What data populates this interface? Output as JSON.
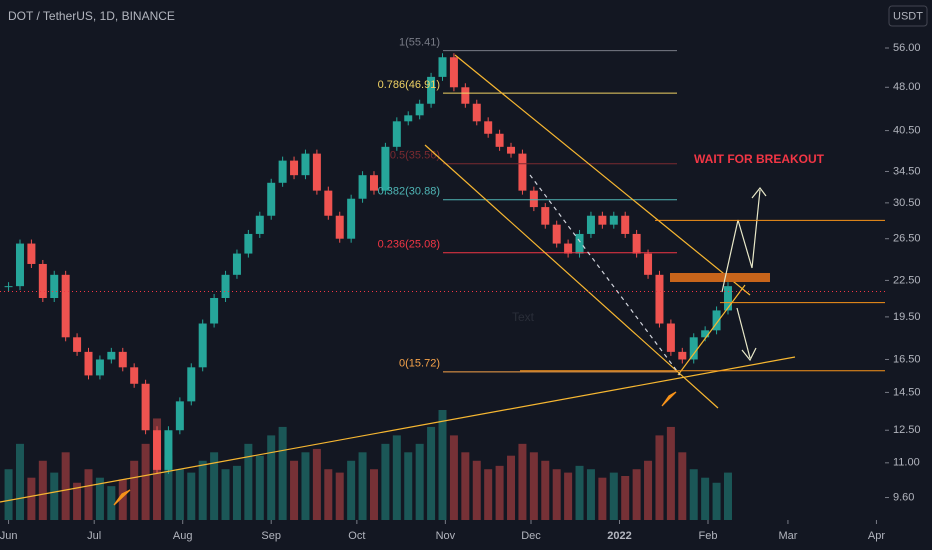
{
  "chart_data": {
    "type": "candlestick",
    "title": "DOT / TetherUS, 1D, BINANCE",
    "currency": "USDT",
    "log_scale": true,
    "x": [
      0,
      4,
      8,
      12,
      16,
      20,
      24,
      28,
      32,
      36,
      40,
      44,
      48,
      52,
      56,
      60,
      64,
      68,
      72,
      76,
      80,
      84,
      88,
      92,
      96,
      100,
      104,
      108,
      112,
      116,
      120,
      124,
      128,
      132,
      136,
      140,
      144,
      148,
      152,
      156,
      160,
      164,
      168,
      172,
      176,
      180,
      184,
      188,
      192,
      196,
      200,
      204,
      208,
      212,
      216,
      220,
      224,
      228,
      232,
      236,
      240,
      244,
      248,
      252
    ],
    "close": [
      22,
      26,
      24,
      21,
      23,
      18,
      17,
      15.5,
      16.5,
      17,
      16,
      15,
      12.5,
      10.7,
      12.5,
      14,
      16,
      19,
      21,
      23,
      25,
      27,
      29,
      33,
      36,
      34,
      37,
      32,
      29,
      26.5,
      31,
      34,
      32,
      38,
      42,
      43,
      45,
      50,
      54,
      48,
      45,
      42,
      40,
      38,
      37,
      32,
      30,
      28,
      26,
      25,
      27,
      29,
      28,
      29,
      27,
      25,
      23,
      19,
      17,
      16.5,
      18,
      18.5,
      20,
      22
    ],
    "volume": [
      30,
      45,
      25,
      35,
      28,
      40,
      22,
      30,
      25,
      20,
      24,
      35,
      45,
      60,
      38,
      30,
      28,
      35,
      40,
      30,
      32,
      45,
      38,
      50,
      55,
      35,
      40,
      42,
      30,
      28,
      35,
      40,
      30,
      45,
      50,
      40,
      45,
      55,
      65,
      50,
      40,
      35,
      30,
      32,
      38,
      45,
      40,
      35,
      30,
      28,
      32,
      30,
      25,
      28,
      26,
      30,
      35,
      50,
      55,
      40,
      30,
      25,
      22,
      28
    ],
    "up_color": "#26a69a",
    "down_color": "#ef5350",
    "xlim": [
      -3,
      307
    ],
    "xticks": [
      {
        "value": 0,
        "label": "Jun"
      },
      {
        "value": 30,
        "label": "Jul"
      },
      {
        "value": 61,
        "label": "Aug"
      },
      {
        "value": 92,
        "label": "Sep"
      },
      {
        "value": 122,
        "label": "Oct"
      },
      {
        "value": 153,
        "label": "Nov"
      },
      {
        "value": 183,
        "label": "Dec"
      },
      {
        "value": 214,
        "label": "2022"
      },
      {
        "value": 245,
        "label": "Feb"
      },
      {
        "value": 273,
        "label": "Mar"
      },
      {
        "value": 304,
        "label": "Apr"
      }
    ],
    "ylim": [
      8.79,
      67.6
    ],
    "yticks": [
      {
        "value": 9.6,
        "label": "9.60"
      },
      {
        "value": 11,
        "label": "11.00"
      },
      {
        "value": 12.5,
        "label": "12.50"
      },
      {
        "value": 14.5,
        "label": "14.50"
      },
      {
        "value": 16.5,
        "label": "16.50"
      },
      {
        "value": 19.5,
        "label": "19.50"
      },
      {
        "value": 22.5,
        "label": "22.50"
      },
      {
        "value": 26.5,
        "label": "26.50"
      },
      {
        "value": 30.5,
        "label": "30.50"
      },
      {
        "value": 34.5,
        "label": "34.50"
      },
      {
        "value": 40.5,
        "label": "40.50"
      },
      {
        "value": 48,
        "label": "48.00"
      },
      {
        "value": 56,
        "label": "56.00"
      }
    ],
    "fib_levels": [
      {
        "value": 55.41,
        "label": "1(55.41)",
        "color": "#787b86"
      },
      {
        "value": 46.91,
        "label": "0.786(46.91)",
        "color": "#f0d264"
      },
      {
        "value": 35.56,
        "label": "0.5(35.56)",
        "color": "#7a2a30"
      },
      {
        "value": 30.88,
        "label": "0.382(30.88)",
        "color": "#4fb5b5"
      },
      {
        "value": 25.08,
        "label": "0.236(25.08)",
        "color": "#f23645"
      },
      {
        "value": 15.72,
        "label": "0(15.72)",
        "color": "#f7a34a"
      }
    ],
    "price_levels": [
      {
        "value": 28.48,
        "color": "#f7931a"
      },
      {
        "value": 21.54,
        "color": "#f23645"
      },
      {
        "value": 20.62,
        "color": "#f7931a"
      },
      {
        "value": 15.79,
        "color": "#f7931a"
      }
    ],
    "annotations": [
      "WAIT FOR BREAKOUT",
      "Text"
    ]
  }
}
